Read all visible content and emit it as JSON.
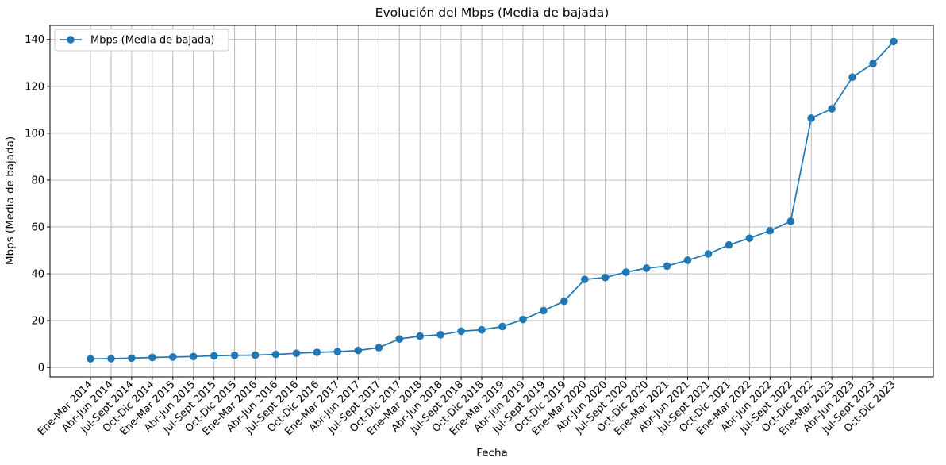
{
  "chart_data": {
    "type": "line",
    "title": "Evolución del Mbps (Media de bajada)",
    "xlabel": "Fecha",
    "ylabel": "Mbps (Media de bajada)",
    "ylim": [
      -4,
      146
    ],
    "yticks": [
      0,
      20,
      40,
      60,
      80,
      100,
      120,
      140
    ],
    "grid": true,
    "legend_position": "top-left",
    "marker": "circle",
    "colors": {
      "series": "#1f77b4",
      "grid": "#b0b0b0"
    },
    "categories": [
      "Ene-Mar 2014",
      "Abr-Jun 2014",
      "Jul-Sept 2014",
      "Oct-Dic 2014",
      "Ene-Mar 2015",
      "Abr-Jun 2015",
      "Jul-Sept 2015",
      "Oct-Dic 2015",
      "Ene-Mar 2016",
      "Abr-Jun 2016",
      "Jul-Sept 2016",
      "Oct-Dic 2016",
      "Ene-Mar 2017",
      "Abr-Jun 2017",
      "Jul-Sept 2017",
      "Oct-Dic 2017",
      "Ene-Mar 2018",
      "Abr-Jun 2018",
      "Jul-Sept 2018",
      "Oct-Dic 2018",
      "Ene-Mar 2019",
      "Abr-Jun 2019",
      "Jul-Sept 2019",
      "Oct-Dic 2019",
      "Ene-Mar 2020",
      "Abr-Jun 2020",
      "Jul-Sept 2020",
      "Oct-Dic 2020",
      "Ene-Mar 2021",
      "Abr-Jun 2021",
      "Jul-Sept 2021",
      "Oct-Dic 2021",
      "Ene-Mar 2022",
      "Abr-Jun 2022",
      "Jul-Sept 2022",
      "Oct-Dic 2022",
      "Ene-Mar 2023",
      "Abr-Jun 2023",
      "Jul-Sept 2023",
      "Oct-Dic 2023"
    ],
    "series": [
      {
        "name": "Mbps (Media de bajada)",
        "values": [
          3.7,
          3.8,
          4.0,
          4.3,
          4.5,
          4.7,
          5.0,
          5.2,
          5.3,
          5.6,
          6.1,
          6.5,
          6.8,
          7.3,
          8.5,
          12.2,
          13.4,
          14.0,
          15.5,
          16.1,
          17.5,
          20.5,
          24.3,
          28.3,
          37.6,
          38.4,
          40.7,
          42.4,
          43.3,
          45.8,
          48.5,
          52.3,
          55.2,
          58.4,
          62.4,
          106.4,
          110.4,
          123.9,
          129.7,
          139.1
        ]
      }
    ]
  }
}
